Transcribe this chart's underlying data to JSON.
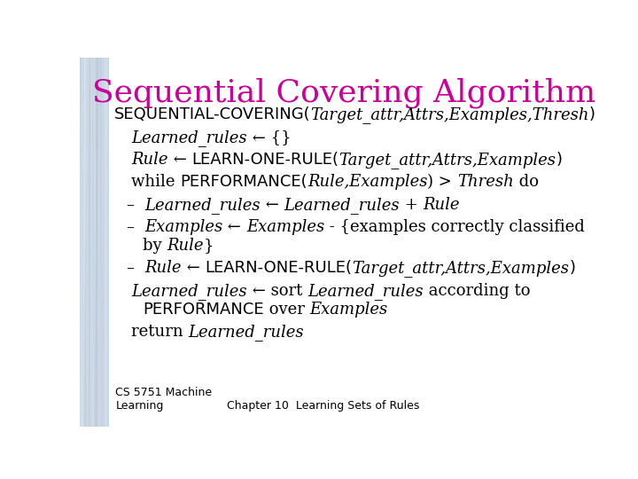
{
  "title": "Sequential Covering Algorithm",
  "title_color": "#CC0099",
  "title_fontsize": 26,
  "bg_color": "#FFFFFF",
  "left_strip_color": "#C8D8E8",
  "text_color": "#000000",
  "body_fontsize": 13,
  "footer_fontsize": 9,
  "footer_left": "CS 5751 Machine\nLearning",
  "footer_center": "Chapter 10  Learning Sets of Rules"
}
